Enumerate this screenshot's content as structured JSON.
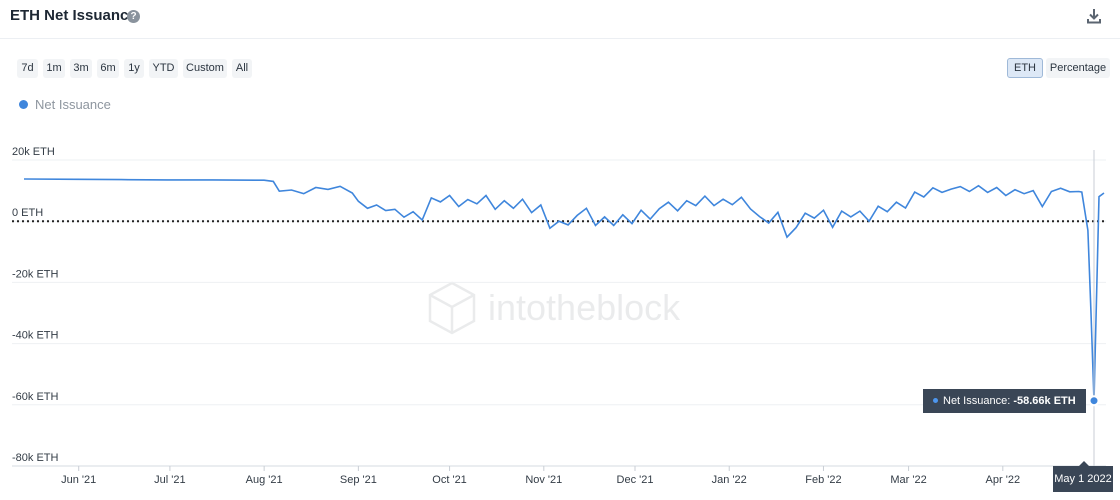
{
  "header": {
    "title": "ETH Net Issuance",
    "help_icon": "question-circle-icon",
    "download_icon": "download-icon"
  },
  "controls": {
    "ranges": [
      "7d",
      "1m",
      "3m",
      "6m",
      "1y",
      "YTD",
      "Custom",
      "All"
    ],
    "units": [
      "ETH",
      "Percentage"
    ],
    "selected_unit": "ETH"
  },
  "legend": {
    "label": "Net Issuance",
    "color": "#3f86dc"
  },
  "watermark": "intotheblock",
  "tooltip": {
    "series": "Net Issuance:",
    "value": "-58.66k ETH",
    "date": "May 1 2022"
  },
  "chart_data": {
    "type": "line",
    "title": "ETH Net Issuance",
    "xlabel": "",
    "ylabel": "",
    "y_ticks": [
      "20k ETH",
      "0 ETH",
      "-20k ETH",
      "-40k ETH",
      "-60k ETH",
      "-80k ETH"
    ],
    "y_tick_values": [
      20000,
      0,
      -20000,
      -40000,
      -60000,
      -80000
    ],
    "ylim": [
      -80000,
      20000
    ],
    "x_ticks": [
      "Jun '21",
      "Jul '21",
      "Aug '21",
      "Sep '21",
      "Oct '21",
      "Nov '21",
      "Dec '21",
      "Jan '22",
      "Feb '22",
      "Mar '22",
      "Apr '22"
    ],
    "x_range": [
      "2021-05-14",
      "2022-05-01"
    ],
    "zero_line": "dotted",
    "grid": true,
    "series": [
      {
        "name": "Net Issuance",
        "color": "#3f86dc",
        "unit": "ETH",
        "points": [
          [
            "2021-05-14",
            13800
          ],
          [
            "2021-05-31",
            13700
          ],
          [
            "2021-06-15",
            13600
          ],
          [
            "2021-06-30",
            13500
          ],
          [
            "2021-07-15",
            13500
          ],
          [
            "2021-08-01",
            13400
          ],
          [
            "2021-08-04",
            13000
          ],
          [
            "2021-08-06",
            9800
          ],
          [
            "2021-08-10",
            10200
          ],
          [
            "2021-08-14",
            9000
          ],
          [
            "2021-08-18",
            11000
          ],
          [
            "2021-08-22",
            10400
          ],
          [
            "2021-08-26",
            11400
          ],
          [
            "2021-08-30",
            9200
          ],
          [
            "2021-09-01",
            6500
          ],
          [
            "2021-09-04",
            4200
          ],
          [
            "2021-09-07",
            5300
          ],
          [
            "2021-09-10",
            3500
          ],
          [
            "2021-09-13",
            3900
          ],
          [
            "2021-09-16",
            1300
          ],
          [
            "2021-09-19",
            3100
          ],
          [
            "2021-09-22",
            400
          ],
          [
            "2021-09-25",
            7600
          ],
          [
            "2021-09-28",
            6300
          ],
          [
            "2021-10-01",
            8400
          ],
          [
            "2021-10-04",
            4800
          ],
          [
            "2021-10-07",
            7100
          ],
          [
            "2021-10-10",
            5700
          ],
          [
            "2021-10-13",
            8400
          ],
          [
            "2021-10-16",
            3900
          ],
          [
            "2021-10-19",
            6700
          ],
          [
            "2021-10-22",
            4200
          ],
          [
            "2021-10-25",
            7200
          ],
          [
            "2021-10-28",
            2800
          ],
          [
            "2021-10-31",
            5300
          ],
          [
            "2021-11-03",
            -2300
          ],
          [
            "2021-11-06",
            0
          ],
          [
            "2021-11-09",
            -1200
          ],
          [
            "2021-11-12",
            1900
          ],
          [
            "2021-11-15",
            4200
          ],
          [
            "2021-11-18",
            -1400
          ],
          [
            "2021-11-21",
            1400
          ],
          [
            "2021-11-24",
            -1400
          ],
          [
            "2021-11-27",
            2100
          ],
          [
            "2021-11-30",
            -800
          ],
          [
            "2021-12-03",
            3600
          ],
          [
            "2021-12-06",
            700
          ],
          [
            "2021-12-09",
            4100
          ],
          [
            "2021-12-12",
            6200
          ],
          [
            "2021-12-15",
            3400
          ],
          [
            "2021-12-18",
            6700
          ],
          [
            "2021-12-21",
            5100
          ],
          [
            "2021-12-24",
            8200
          ],
          [
            "2021-12-27",
            5100
          ],
          [
            "2021-12-30",
            7200
          ],
          [
            "2022-01-02",
            5400
          ],
          [
            "2022-01-05",
            7800
          ],
          [
            "2022-01-08",
            4000
          ],
          [
            "2022-01-11",
            1500
          ],
          [
            "2022-01-14",
            -600
          ],
          [
            "2022-01-17",
            2900
          ],
          [
            "2022-01-20",
            -5200
          ],
          [
            "2022-01-23",
            -2100
          ],
          [
            "2022-01-26",
            2600
          ],
          [
            "2022-01-29",
            1000
          ],
          [
            "2022-02-01",
            3600
          ],
          [
            "2022-02-04",
            -2000
          ],
          [
            "2022-02-07",
            3300
          ],
          [
            "2022-02-10",
            1400
          ],
          [
            "2022-02-13",
            3300
          ],
          [
            "2022-02-16",
            0
          ],
          [
            "2022-02-19",
            4900
          ],
          [
            "2022-02-22",
            3100
          ],
          [
            "2022-02-25",
            6200
          ],
          [
            "2022-02-28",
            4300
          ],
          [
            "2022-03-03",
            9500
          ],
          [
            "2022-03-06",
            7900
          ],
          [
            "2022-03-09",
            10900
          ],
          [
            "2022-03-12",
            9400
          ],
          [
            "2022-03-15",
            10500
          ],
          [
            "2022-03-18",
            11300
          ],
          [
            "2022-03-21",
            9700
          ],
          [
            "2022-03-24",
            11600
          ],
          [
            "2022-03-27",
            9400
          ],
          [
            "2022-03-30",
            11000
          ],
          [
            "2022-04-02",
            8400
          ],
          [
            "2022-04-05",
            10300
          ],
          [
            "2022-04-08",
            9000
          ],
          [
            "2022-04-11",
            10000
          ],
          [
            "2022-04-14",
            4800
          ],
          [
            "2022-04-17",
            9700
          ],
          [
            "2022-04-20",
            10800
          ],
          [
            "2022-04-23",
            9600
          ],
          [
            "2022-04-26",
            9700
          ],
          [
            "2022-04-27",
            9500
          ],
          [
            "2022-04-29",
            -3000
          ],
          [
            "2022-04-30",
            -30000
          ],
          [
            "2022-05-01",
            -58660
          ],
          [
            "2022-05-01",
            8000
          ],
          [
            "2022-05-01",
            9200
          ]
        ]
      }
    ],
    "highlight": {
      "date": "2022-05-01",
      "value": -58660
    }
  }
}
